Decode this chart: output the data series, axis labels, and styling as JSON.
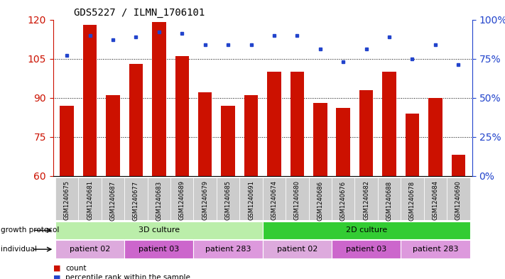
{
  "title": "GDS5227 / ILMN_1706101",
  "samples": [
    "GSM1240675",
    "GSM1240681",
    "GSM1240687",
    "GSM1240677",
    "GSM1240683",
    "GSM1240689",
    "GSM1240679",
    "GSM1240685",
    "GSM1240691",
    "GSM1240674",
    "GSM1240680",
    "GSM1240686",
    "GSM1240676",
    "GSM1240682",
    "GSM1240688",
    "GSM1240678",
    "GSM1240684",
    "GSM1240690"
  ],
  "counts": [
    87,
    118,
    91,
    103,
    119,
    106,
    92,
    87,
    91,
    100,
    100,
    88,
    86,
    93,
    100,
    84,
    90,
    68
  ],
  "percentiles": [
    77,
    90,
    87,
    89,
    92,
    91,
    84,
    84,
    84,
    90,
    90,
    81,
    73,
    81,
    89,
    75,
    84,
    71
  ],
  "ylim_left": [
    60,
    120
  ],
  "ylim_right": [
    0,
    100
  ],
  "yticks_left": [
    60,
    75,
    90,
    105,
    120
  ],
  "yticks_right": [
    0,
    25,
    50,
    75,
    100
  ],
  "bar_color": "#cc1100",
  "marker_color": "#2244cc",
  "bg_color": "#ffffff",
  "growth_protocol_groups": [
    {
      "label": "3D culture",
      "start": 0,
      "end": 9,
      "color": "#bbeeaa"
    },
    {
      "label": "2D culture",
      "start": 9,
      "end": 18,
      "color": "#33cc33"
    }
  ],
  "individual_groups": [
    {
      "label": "patient 02",
      "start": 0,
      "end": 3,
      "color": "#ddaadd"
    },
    {
      "label": "patient 03",
      "start": 3,
      "end": 6,
      "color": "#cc66cc"
    },
    {
      "label": "patient 283",
      "start": 6,
      "end": 9,
      "color": "#dd99dd"
    },
    {
      "label": "patient 02",
      "start": 9,
      "end": 12,
      "color": "#ddaadd"
    },
    {
      "label": "patient 03",
      "start": 12,
      "end": 15,
      "color": "#cc66cc"
    },
    {
      "label": "patient 283",
      "start": 15,
      "end": 18,
      "color": "#dd99dd"
    }
  ],
  "legend_items": [
    {
      "label": "count",
      "color": "#cc1100"
    },
    {
      "label": "percentile rank within the sample",
      "color": "#2244cc"
    }
  ],
  "tick_bg_color": "#cccccc",
  "left_label_color": "#cc1100",
  "right_label_color": "#2244cc"
}
